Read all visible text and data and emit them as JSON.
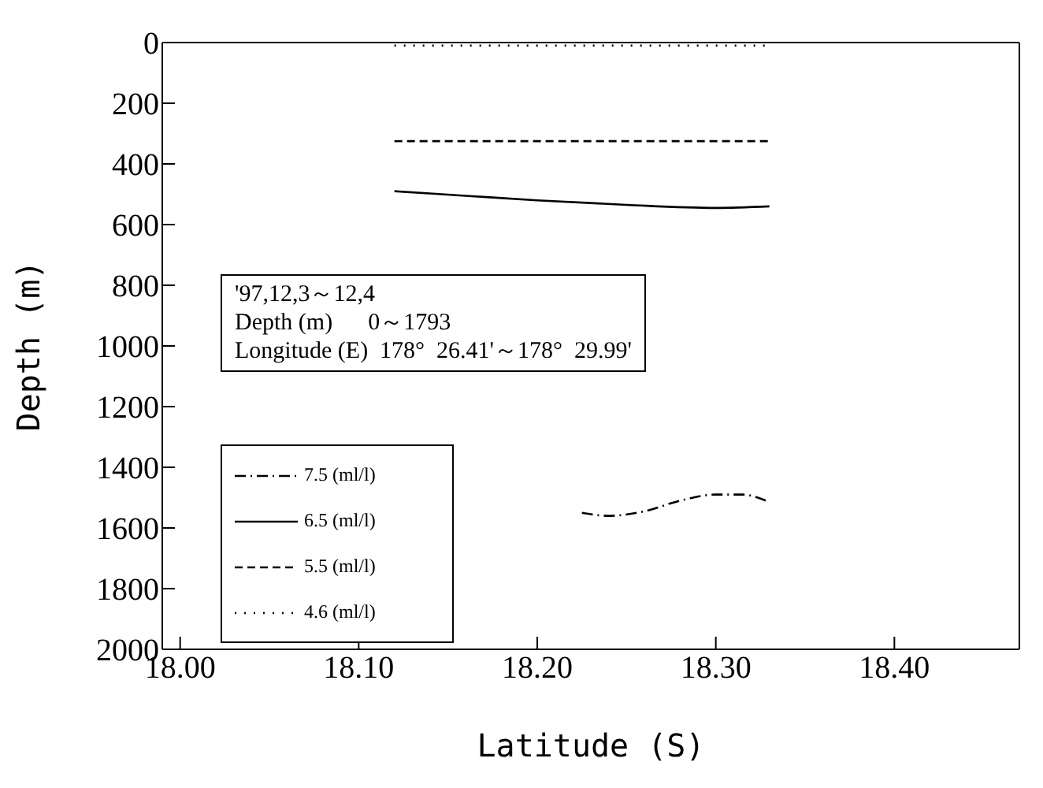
{
  "chart_data": {
    "type": "line",
    "xlabel": "Latitude (S)",
    "ylabel": "Depth (m)",
    "xlim": [
      17.99,
      18.47
    ],
    "xticks": [
      {
        "value": 18.0,
        "label": "18.00"
      },
      {
        "value": 18.1,
        "label": "18.10"
      },
      {
        "value": 18.2,
        "label": "18.20"
      },
      {
        "value": 18.3,
        "label": "18.30"
      },
      {
        "value": 18.4,
        "label": "18.40"
      }
    ],
    "ylim": [
      2000,
      0
    ],
    "yticks": [
      0,
      200,
      400,
      600,
      800,
      1000,
      1200,
      1400,
      1600,
      1800,
      2000
    ],
    "legend": "bottom left",
    "marker": "none",
    "annotations": [
      "'97,12,3～12,4",
      "Depth (m)      0～1793",
      "Longitude (E)  178°  26.41'～178°  29.99'"
    ],
    "series": [
      {
        "name": "7.5 (ml/l)",
        "color": "#000000",
        "line_style": "dashdot",
        "x": [
          18.225,
          18.24,
          18.26,
          18.28,
          18.3,
          18.315,
          18.33
        ],
        "values": [
          1550,
          1560,
          1545,
          1510,
          1490,
          1490,
          1515
        ]
      },
      {
        "name": "6.5 (ml/l)",
        "color": "#000000",
        "line_style": "solid",
        "x": [
          18.12,
          18.16,
          18.2,
          18.25,
          18.3,
          18.33
        ],
        "values": [
          490,
          505,
          520,
          535,
          545,
          540
        ]
      },
      {
        "name": "5.5 (ml/l)",
        "color": "#000000",
        "line_style": "dashed",
        "x": [
          18.12,
          18.33
        ],
        "values": [
          325,
          325
        ]
      },
      {
        "name": "4.6 (ml/l)",
        "color": "#000000",
        "line_style": "dotted",
        "x": [
          18.12,
          18.33
        ],
        "values": [
          10,
          10
        ]
      }
    ]
  }
}
